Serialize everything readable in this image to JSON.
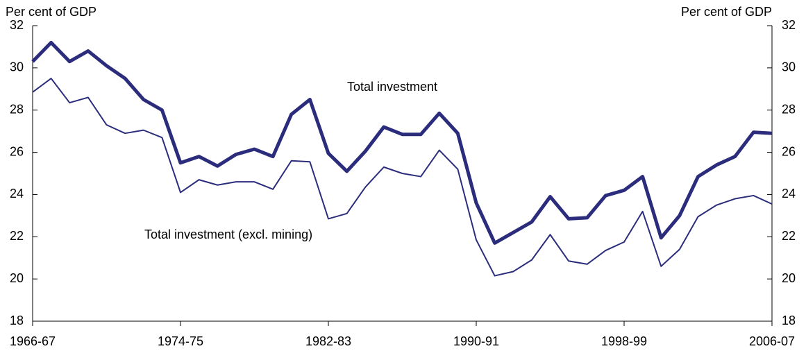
{
  "chart_data": {
    "type": "line",
    "y_axis_label": "Per cent of GDP",
    "y2_axis_label": "Per cent of GDP",
    "categories": [
      "1966-67",
      null,
      null,
      null,
      null,
      null,
      null,
      null,
      "1974-75",
      null,
      null,
      null,
      null,
      null,
      null,
      null,
      "1982-83",
      null,
      null,
      null,
      null,
      null,
      null,
      null,
      "1990-91",
      null,
      null,
      null,
      null,
      null,
      null,
      null,
      "1998-99",
      null,
      null,
      null,
      null,
      null,
      null,
      null,
      "2006-07"
    ],
    "series": [
      {
        "name": "Total investment",
        "color": "#2b2d7c",
        "width": 5,
        "values": [
          30.3,
          31.2,
          30.3,
          30.8,
          30.1,
          29.5,
          28.5,
          28.0,
          25.5,
          25.8,
          25.35,
          25.9,
          26.15,
          25.8,
          27.8,
          28.5,
          25.95,
          25.1,
          26.05,
          27.2,
          26.85,
          26.85,
          27.85,
          26.9,
          23.6,
          21.7,
          22.2,
          22.7,
          23.9,
          22.85,
          22.9,
          23.95,
          24.2,
          24.85,
          21.95,
          23.0,
          24.85,
          25.4,
          25.8,
          26.95,
          26.9
        ]
      },
      {
        "name": "Total investment (excl. mining)",
        "color": "#2b2d7c",
        "width": 2,
        "values": [
          28.85,
          29.5,
          28.35,
          28.6,
          27.3,
          26.9,
          27.05,
          26.7,
          24.1,
          24.7,
          24.45,
          24.6,
          24.6,
          24.25,
          25.6,
          25.55,
          22.85,
          23.1,
          24.35,
          25.3,
          25.0,
          24.85,
          26.1,
          25.2,
          21.85,
          20.15,
          20.35,
          20.9,
          22.1,
          20.85,
          20.7,
          21.35,
          21.75,
          23.2,
          20.6,
          21.4,
          22.95,
          23.5,
          23.8,
          23.95,
          23.55
        ]
      }
    ],
    "ylim": [
      18,
      32
    ],
    "yticks": [
      18,
      20,
      22,
      24,
      26,
      28,
      30,
      32
    ],
    "y2lim": [
      18,
      32
    ],
    "y2ticks": [
      18,
      20,
      22,
      24,
      26,
      28,
      30,
      32
    ]
  }
}
